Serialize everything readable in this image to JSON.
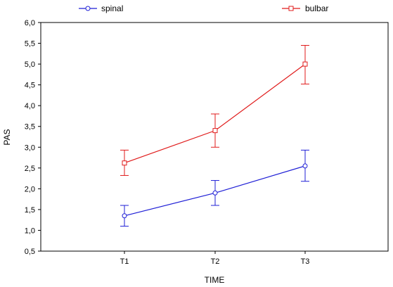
{
  "chart_data": {
    "type": "line",
    "title": "",
    "xlabel": "TIME",
    "ylabel": "PAS",
    "categories": [
      "T1",
      "T2",
      "T3"
    ],
    "ylim": [
      0.5,
      6.0
    ],
    "yticks": [
      "0,5",
      "1,0",
      "1,5",
      "2,0",
      "2,5",
      "3,0",
      "3,5",
      "4,0",
      "4,5",
      "5,0",
      "5,5",
      "6,0"
    ],
    "grid": false,
    "legend_position": "top",
    "series": [
      {
        "name": "spinal",
        "color": "#1f1fd6",
        "values": [
          1.35,
          1.9,
          2.55
        ],
        "error_low": [
          1.1,
          1.6,
          2.18
        ],
        "error_high": [
          1.6,
          2.2,
          2.93
        ]
      },
      {
        "name": "bulbar",
        "color": "#e01b1b",
        "values": [
          2.62,
          3.4,
          5.0
        ],
        "error_low": [
          2.32,
          3.0,
          4.52
        ],
        "error_high": [
          2.93,
          3.8,
          5.45
        ]
      }
    ]
  }
}
